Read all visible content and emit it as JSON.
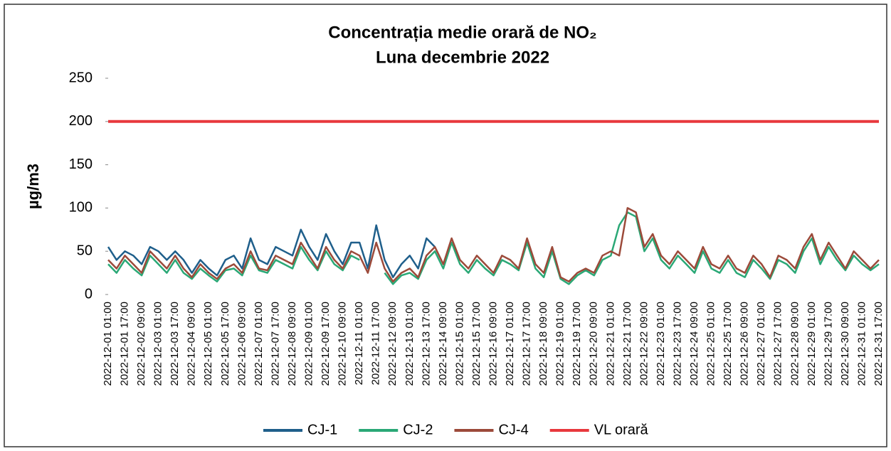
{
  "chart_data": {
    "type": "line",
    "title": "Concentrația medie orară de NO₂",
    "subtitle": "Luna  decembrie 2022",
    "y_label": "µg/m3",
    "categories": [
      "2022-12-01 01:00",
      null,
      "2022-12-01 17:00",
      null,
      "2022-12-02 09:00",
      null,
      "2022-12-03 01:00",
      null,
      "2022-12-03 17:00",
      null,
      "2022-12-04 09:00",
      null,
      "2022-12-05 01:00",
      null,
      "2022-12-05 17:00",
      null,
      "2022-12-06 09:00",
      null,
      "2022-12-07 01:00",
      null,
      "2022-12-07 17:00",
      null,
      "2022-12-08 09:00",
      null,
      "2022-12-09 01:00",
      null,
      "2022-12-09 17:00",
      null,
      "2022-12-10 09:00",
      null,
      "2022-12-11 01:00",
      null,
      "2022-12-11 17:00",
      null,
      "2022-12-12 09:00",
      null,
      "2022-12-13 01:00",
      null,
      "2022-12-13 17:00",
      null,
      "2022-12-14 09:00",
      null,
      "2022-12-15 01:00",
      null,
      "2022-12-15 17:00",
      null,
      "2022-12-16 09:00",
      null,
      "2022-12-17 01:00",
      null,
      "2022-12-17 17:00",
      null,
      "2022-12-18 09:00",
      null,
      "2022-12-19 01:00",
      null,
      "2022-12-19 17:00",
      null,
      "2022-12-20 09:00",
      null,
      "2022-12-21 01:00",
      null,
      "2022-12-21 17:00",
      null,
      "2022-12-22 09:00",
      null,
      "2022-12-23 01:00",
      null,
      "2022-12-23 17:00",
      null,
      "2022-12-24 09:00",
      null,
      "2022-12-25 01:00",
      null,
      "2022-12-25 17:00",
      null,
      "2022-12-26 09:00",
      null,
      "2022-12-27 01:00",
      null,
      "2022-12-27 17:00",
      null,
      "2022-12-28 09:00",
      null,
      "2022-12-29 01:00",
      null,
      "2022-12-29 17:00",
      null,
      "2022-12-30 09:00",
      null,
      "2022-12-31 01:00",
      null,
      "2022-12-31 17:00"
    ],
    "series": [
      {
        "name": "CJ-1",
        "color": "#1f5f8b",
        "values": [
          55,
          40,
          50,
          45,
          35,
          55,
          50,
          40,
          50,
          40,
          25,
          40,
          30,
          22,
          40,
          45,
          30,
          65,
          40,
          35,
          55,
          50,
          45,
          75,
          55,
          40,
          70,
          50,
          35,
          60,
          60,
          30,
          80,
          40,
          20,
          35,
          45,
          30,
          65,
          55,
          null,
          null,
          null,
          null,
          null,
          null,
          null,
          null,
          null,
          null,
          null,
          null,
          null,
          null,
          null,
          null,
          null,
          null,
          null,
          null,
          null,
          null,
          null,
          null,
          null,
          null,
          null,
          null,
          null,
          null,
          null,
          null,
          null,
          null,
          null,
          null,
          null,
          null,
          null,
          null,
          null,
          null,
          null,
          null,
          null,
          null,
          null,
          null,
          null,
          null,
          null,
          null,
          null
        ]
      },
      {
        "name": "CJ-2",
        "color": "#2aa876",
        "values": [
          35,
          25,
          40,
          30,
          22,
          45,
          35,
          25,
          40,
          25,
          18,
          30,
          22,
          15,
          28,
          30,
          22,
          45,
          28,
          25,
          40,
          35,
          30,
          55,
          40,
          28,
          50,
          35,
          28,
          45,
          40,
          null,
          null,
          25,
          12,
          22,
          25,
          18,
          40,
          50,
          30,
          60,
          35,
          25,
          40,
          30,
          22,
          40,
          35,
          28,
          60,
          30,
          20,
          50,
          18,
          12,
          22,
          28,
          22,
          40,
          45,
          80,
          95,
          90,
          50,
          65,
          40,
          30,
          45,
          35,
          25,
          50,
          30,
          25,
          40,
          25,
          20,
          40,
          30,
          18,
          40,
          35,
          25,
          50,
          65,
          35,
          55,
          40,
          28,
          45,
          35,
          28,
          35
        ]
      },
      {
        "name": "CJ-4",
        "color": "#9c4a3a",
        "values": [
          40,
          30,
          45,
          35,
          25,
          50,
          40,
          30,
          45,
          30,
          20,
          35,
          25,
          18,
          30,
          35,
          25,
          50,
          30,
          28,
          45,
          40,
          35,
          60,
          45,
          30,
          55,
          40,
          30,
          50,
          45,
          25,
          60,
          30,
          15,
          25,
          30,
          20,
          45,
          55,
          35,
          65,
          40,
          30,
          45,
          35,
          25,
          45,
          40,
          30,
          65,
          35,
          25,
          55,
          20,
          15,
          25,
          30,
          25,
          45,
          50,
          45,
          100,
          95,
          55,
          70,
          45,
          35,
          50,
          40,
          30,
          55,
          35,
          30,
          45,
          30,
          25,
          45,
          35,
          20,
          45,
          40,
          30,
          55,
          70,
          40,
          60,
          45,
          30,
          50,
          40,
          30,
          40
        ]
      }
    ],
    "threshold": {
      "name": "VL orară",
      "value": 200,
      "color": "#e8383d"
    },
    "ylim": [
      0,
      250
    ],
    "yticks": [
      0,
      50,
      100,
      150,
      200,
      250
    ],
    "grid": false,
    "legend": "bottom"
  }
}
